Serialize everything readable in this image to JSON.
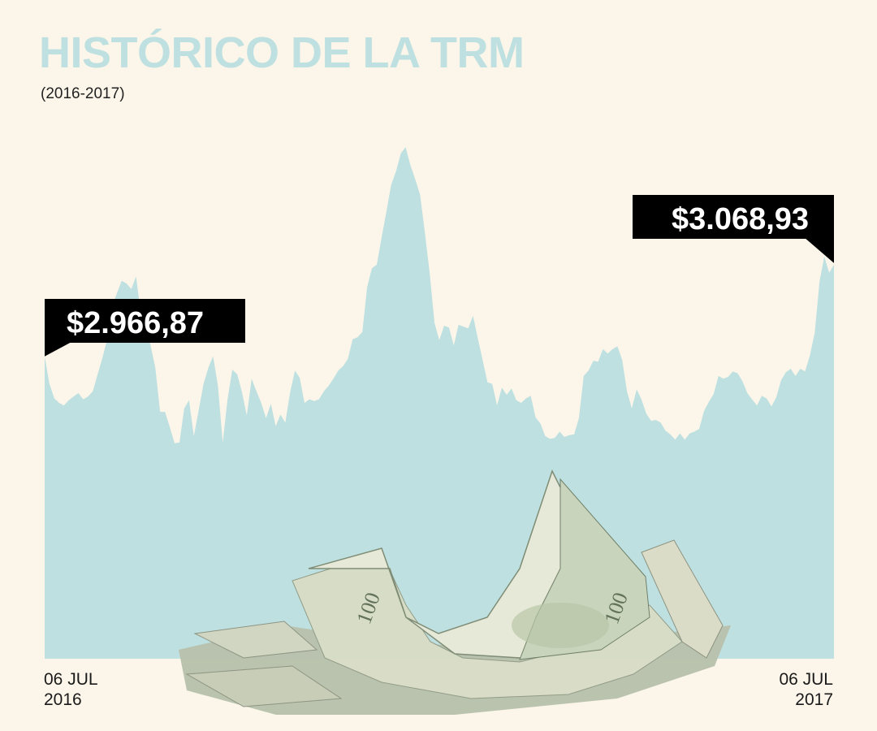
{
  "header": {
    "title": "HISTÓRICO DE LA TRM",
    "subtitle": "(2016-2017)"
  },
  "colors": {
    "background": "#fcf6ea",
    "area": "#bfe0e0",
    "title": "#bfe0e0",
    "label_box": "#000000",
    "label_text": "#ffffff"
  },
  "chart_data": {
    "type": "area",
    "title": "HISTÓRICO DE LA TRM",
    "subtitle": "(2016-2017)",
    "x_labels": {
      "start": {
        "line1": "06 JUL",
        "line2": "2016"
      },
      "end": {
        "line1": "06 JUL",
        "line2": "2017"
      }
    },
    "annotations": [
      {
        "text": "$2.966,87",
        "value": 2966.87,
        "position": "start"
      },
      {
        "text": "$3.068,93",
        "value": 3068.93,
        "position": "end"
      }
    ],
    "y_axis_visible": false,
    "grid": false,
    "series": [
      {
        "values": [
          2966.87,
          2936,
          2920,
          2915,
          2912,
          2918,
          2922,
          2926,
          2919,
          2922,
          2928,
          2947,
          2965,
          2986,
          3023,
          3037,
          3051,
          3048,
          3042,
          3056,
          3014,
          3005,
          2979,
          2954,
          2905,
          2905,
          2888,
          2870,
          2871,
          2909,
          2918,
          2878,
          2907,
          2936,
          2954,
          2967,
          2934,
          2871,
          2919,
          2952,
          2947,
          2927,
          2901,
          2942,
          2928,
          2915,
          2898,
          2914,
          2889,
          2902,
          2893,
          2927,
          2951,
          2943,
          2915,
          2919,
          2917,
          2919,
          2928,
          2934,
          2942,
          2951,
          2956,
          2964,
          2986,
          2988,
          2994,
          3044,
          3065,
          3069,
          3099,
          3128,
          3158,
          3173,
          3193,
          3200,
          3180,
          3164,
          3147,
          3105,
          3060,
          3004,
          2985,
          3001,
          2999,
          2979,
          3002,
          3000,
          2998,
          3012,
          2987,
          2963,
          2938,
          2936,
          2912,
          2932,
          2924,
          2931,
          2918,
          2915,
          2920,
          2923,
          2899,
          2892,
          2878,
          2875,
          2876,
          2883,
          2877,
          2879,
          2880,
          2898,
          2945,
          2951,
          2962,
          2961,
          2975,
          2970,
          2975,
          2978,
          2963,
          2928,
          2909,
          2930,
          2919,
          2903,
          2895,
          2896,
          2893,
          2884,
          2880,
          2874,
          2881,
          2874,
          2881,
          2883,
          2886,
          2906,
          2916,
          2925,
          2945,
          2942,
          2944,
          2950,
          2948,
          2939,
          2926,
          2919,
          2912,
          2923,
          2920,
          2911,
          2921,
          2940,
          2949,
          2953,
          2945,
          2953,
          2950,
          2968,
          2993,
          3050,
          3078,
          3060,
          3068.93
        ]
      }
    ]
  }
}
